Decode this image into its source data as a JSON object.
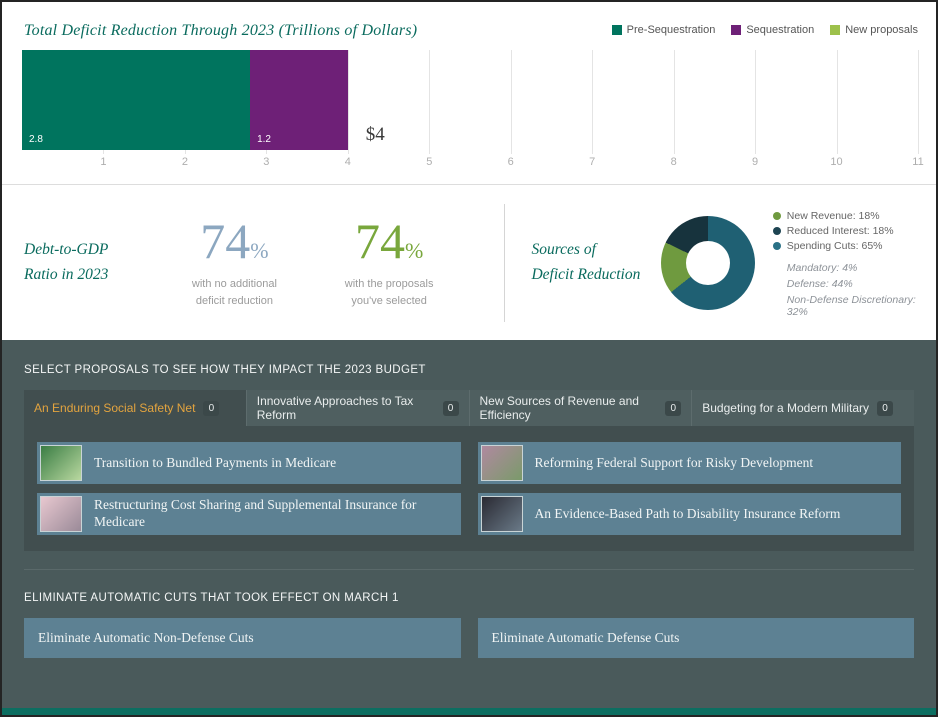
{
  "colors": {
    "accent_teal": "#0a6b5e",
    "big_number_blue": "#8ca7c0",
    "big_number_green": "#79a73c",
    "panel_bg": "#4a5a5b",
    "panel_dark_bg": "#414e4f",
    "button_blue": "#5d8193",
    "tab_active_text": "#e3a43f",
    "footer_teal": "#0c6e61"
  },
  "bar_chart": {
    "title": "Total Deficit Reduction Through 2023 (Trillions of Dollars)",
    "legend": [
      {
        "label": "Pre-Sequestration",
        "color": "#00745e"
      },
      {
        "label": "Sequestration",
        "color": "#6e2077"
      },
      {
        "label": "New proposals",
        "color": "#9dc14b"
      }
    ],
    "chart_data": {
      "type": "bar",
      "orientation": "horizontal-stacked",
      "series": [
        {
          "name": "Pre-Sequestration",
          "value": 2.8,
          "label": "2.8",
          "color": "#00745e"
        },
        {
          "name": "Sequestration",
          "value": 1.2,
          "label": "1.2",
          "color": "#6e2077"
        },
        {
          "name": "New proposals",
          "value": 0,
          "label": "",
          "color": "#9dc14b"
        }
      ],
      "total_label": "$4",
      "x_ticks": [
        "1",
        "2",
        "3",
        "4",
        "5",
        "6",
        "7",
        "8",
        "9",
        "10",
        "11"
      ],
      "xlim": [
        0,
        11
      ],
      "grid": true
    }
  },
  "debt_panel": {
    "heading_line1": "Debt-to-GDP",
    "heading_line2": "Ratio in 2023",
    "baseline": {
      "value": "74",
      "unit": "%",
      "caption_line1": "with no additional",
      "caption_line2": "deficit reduction"
    },
    "selected": {
      "value": "74",
      "unit": "%",
      "caption_line1": "with the proposals",
      "caption_line2": "you've selected"
    }
  },
  "sources_panel": {
    "heading_line1": "Sources of",
    "heading_line2": "Deficit Reduction",
    "chart_data": {
      "type": "pie",
      "donut": true,
      "slices": [
        {
          "label": "Spending Cuts",
          "value": 65,
          "color": "#1f6073"
        },
        {
          "label": "New Revenue",
          "value": 18,
          "color": "#6f9a3f"
        },
        {
          "label": "Reduced Interest",
          "value": 18,
          "color": "#17333d"
        }
      ]
    },
    "legend": [
      {
        "label": "New Revenue: 18%",
        "color": "#6f9a3f"
      },
      {
        "label": "Reduced Interest: 18%",
        "color": "#1d4452"
      },
      {
        "label": "Spending Cuts: 65%",
        "color": "#2a7186"
      }
    ],
    "sub_legend": [
      "Mandatory: 4%",
      "Defense: 44%",
      "Non-Defense Discretionary: 32%"
    ]
  },
  "proposals": {
    "heading": "SELECT PROPOSALS TO SEE HOW THEY IMPACT THE 2023 BUDGET",
    "tabs": [
      {
        "label": "An Enduring Social Safety Net",
        "count": "0",
        "active": true
      },
      {
        "label": "Innovative Approaches to Tax Reform",
        "count": "0",
        "active": false
      },
      {
        "label": "New Sources of Revenue and Efficiency",
        "count": "0",
        "active": false
      },
      {
        "label": "Budgeting for a Modern Military",
        "count": "0",
        "active": false
      }
    ],
    "items": [
      {
        "label": "Transition to Bundled Payments in Medicare",
        "thumb": [
          "#3a7d44",
          "#b9d8a0"
        ]
      },
      {
        "label": "Reforming Federal Support for Risky Development",
        "thumb": [
          "#b089a0",
          "#7a9a6a"
        ]
      },
      {
        "label": "Restructuring Cost Sharing and Supplemental Insurance for Medicare",
        "thumb": [
          "#e8c8d0",
          "#9a8a98"
        ]
      },
      {
        "label": "An Evidence-Based Path to Disability Insurance Reform",
        "thumb": [
          "#2a2a33",
          "#6a7a88"
        ]
      }
    ]
  },
  "sequester": {
    "heading": "ELIMINATE AUTOMATIC CUTS THAT TOOK EFFECT ON MARCH 1",
    "buttons": [
      {
        "label": "Eliminate Automatic Non-Defense Cuts"
      },
      {
        "label": "Eliminate Automatic Defense Cuts"
      }
    ]
  }
}
